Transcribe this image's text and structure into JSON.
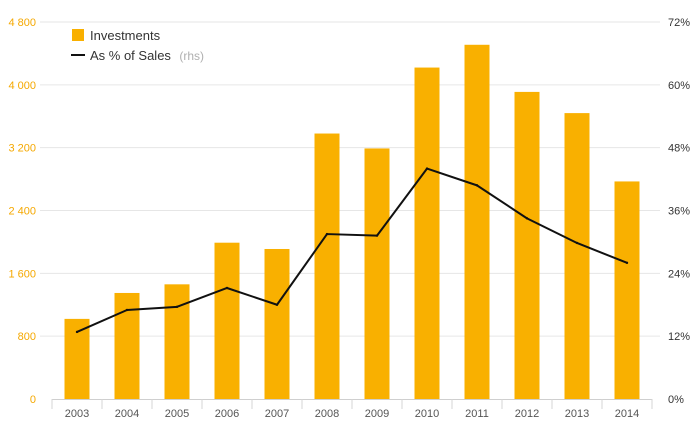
{
  "chart_data": {
    "type": "bar",
    "categories": [
      "2003",
      "2004",
      "2005",
      "2006",
      "2007",
      "2008",
      "2009",
      "2010",
      "2011",
      "2012",
      "2013",
      "2014"
    ],
    "series": [
      {
        "name": "Investments",
        "type": "bar",
        "axis": "left",
        "color": "#f9b000",
        "values": [
          1020,
          1350,
          1460,
          1990,
          1910,
          3380,
          3190,
          4220,
          4510,
          3910,
          3640,
          2770
        ]
      },
      {
        "name": "As % of Sales",
        "name_suffix": "(rhs)",
        "type": "line",
        "axis": "right",
        "color": "#111111",
        "values": [
          12.8,
          17.0,
          17.6,
          21.2,
          18.0,
          31.5,
          31.2,
          44.0,
          40.8,
          34.5,
          29.8,
          26.0
        ]
      }
    ],
    "y_left": {
      "ticks": [
        0,
        800,
        1600,
        2400,
        3200,
        4000,
        4800
      ],
      "tick_labels": [
        "0",
        "800",
        "1 600",
        "2 400",
        "3 200",
        "4 000",
        "4 800"
      ],
      "ylim": [
        0,
        4800
      ],
      "color": "#f5a800"
    },
    "y_right": {
      "ticks": [
        0,
        12,
        24,
        36,
        48,
        60,
        72
      ],
      "tick_labels": [
        "0%",
        "12%",
        "24%",
        "36%",
        "48%",
        "60%",
        "72%"
      ],
      "ylim": [
        0,
        72
      ]
    },
    "grid": true,
    "legend_position": "top-left"
  }
}
